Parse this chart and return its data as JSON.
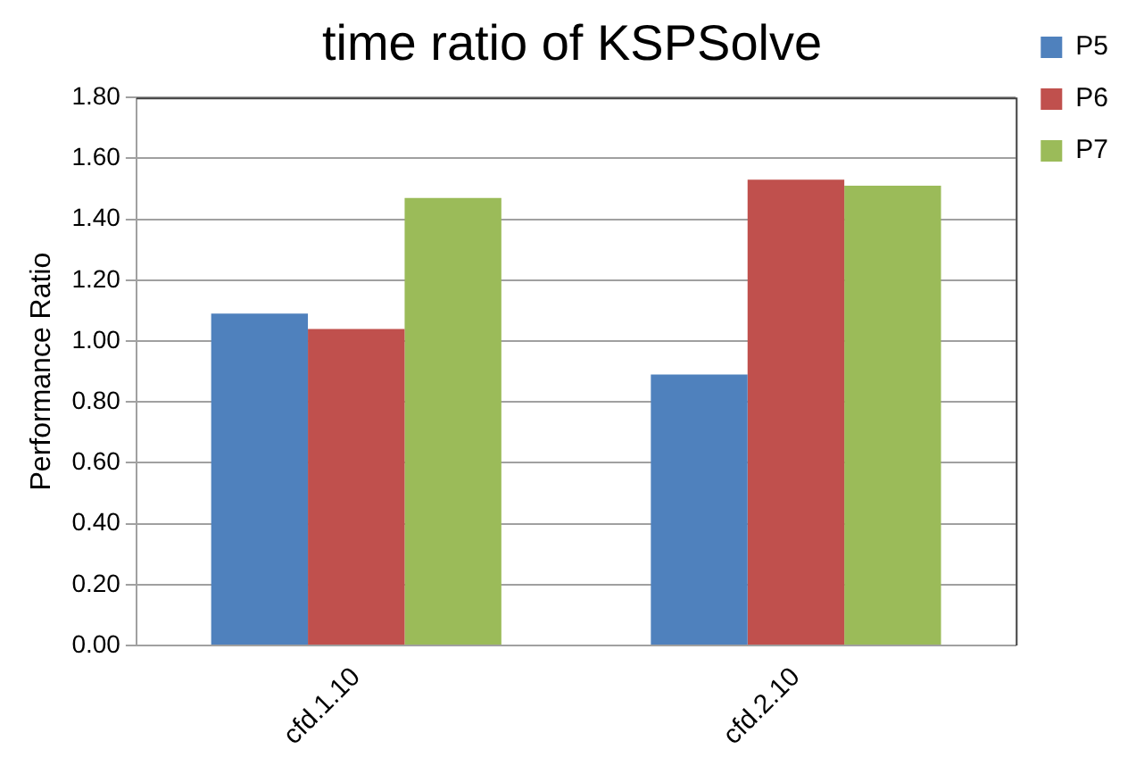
{
  "chart_data": {
    "type": "bar",
    "title": "time ratio of KSPSolve",
    "ylabel": "Performance Ratio",
    "categories": [
      "cfd.1.10",
      "cfd.2.10"
    ],
    "series": [
      {
        "name": "P5",
        "color": "#4f81bd",
        "values": [
          1.09,
          0.89
        ]
      },
      {
        "name": "P6",
        "color": "#c0504d",
        "values": [
          1.04,
          1.53
        ]
      },
      {
        "name": "P7",
        "color": "#9bbb59",
        "values": [
          1.47,
          1.51
        ]
      }
    ],
    "ylim": [
      0,
      1.8
    ],
    "yticks": [
      {
        "value": 0,
        "label": "0.00"
      },
      {
        "value": 0.2,
        "label": "0.20"
      },
      {
        "value": 0.4,
        "label": "0.40"
      },
      {
        "value": 0.6,
        "label": "0.60"
      },
      {
        "value": 0.8,
        "label": "0.80"
      },
      {
        "value": 1,
        "label": "1.00"
      },
      {
        "value": 1.2,
        "label": "1.20"
      },
      {
        "value": 1.4,
        "label": "1.40"
      },
      {
        "value": 1.6,
        "label": "1.60"
      },
      {
        "value": 1.8,
        "label": "1.80"
      }
    ],
    "grid": "y",
    "legend": "right"
  }
}
